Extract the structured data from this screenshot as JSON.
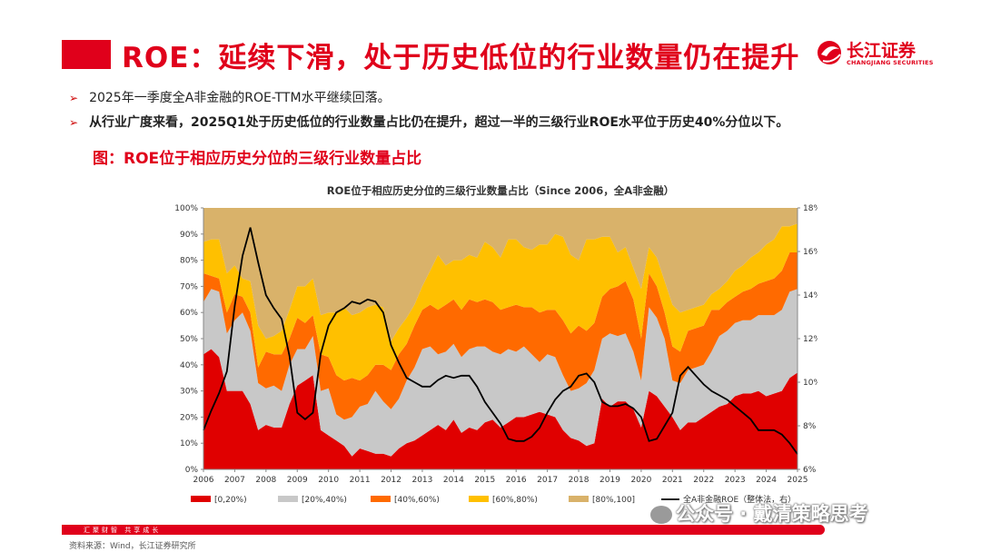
{
  "header": {
    "title": "ROE：延续下滑，处于历史低位的行业数量仍在提升",
    "logo_text": "长江证券",
    "logo_sub": "CHANGJIANG SECURITIES"
  },
  "bullets": [
    "2025年一季度全A非金融的ROE-TTM水平继续回落。",
    "从行业广度来看，2025Q1处于历史低位的行业数量占比仍在提升，超过一半的三级行业ROE水平位于历史40%分位以下。"
  ],
  "figure_title": "图：ROE位于相应历史分位的三级行业数量占比",
  "footer": {
    "slogan": "汇聚财智 共享成长",
    "source": "资料来源：Wind，长江证券研究所",
    "watermark": "公众号 · 戴清策略思考"
  },
  "chart_data": {
    "type": "area",
    "title": "ROE位于相应历史分位的三级行业数量占比（Since 2006，全A非金融）",
    "x": [
      2006.0,
      2006.25,
      2006.5,
      2006.75,
      2007.0,
      2007.25,
      2007.5,
      2007.75,
      2008.0,
      2008.25,
      2008.5,
      2008.75,
      2009.0,
      2009.25,
      2009.5,
      2009.75,
      2010.0,
      2010.25,
      2010.5,
      2010.75,
      2011.0,
      2011.25,
      2011.5,
      2011.75,
      2012.0,
      2012.25,
      2012.5,
      2012.75,
      2013.0,
      2013.25,
      2013.5,
      2013.75,
      2014.0,
      2014.25,
      2014.5,
      2014.75,
      2015.0,
      2015.25,
      2015.5,
      2015.75,
      2016.0,
      2016.25,
      2016.5,
      2016.75,
      2017.0,
      2017.25,
      2017.5,
      2017.75,
      2018.0,
      2018.25,
      2018.5,
      2018.75,
      2019.0,
      2019.25,
      2019.5,
      2019.75,
      2020.0,
      2020.25,
      2020.5,
      2020.75,
      2021.0,
      2021.25,
      2021.5,
      2021.75,
      2022.0,
      2022.25,
      2022.5,
      2022.75,
      2023.0,
      2023.25,
      2023.5,
      2023.75,
      2024.0,
      2024.25,
      2024.5,
      2024.75,
      2025.0
    ],
    "xlim": [
      2006,
      2025
    ],
    "x_ticks": [
      "2006",
      "2007",
      "2008",
      "2009",
      "2010",
      "2011",
      "2012",
      "2013",
      "2014",
      "2015",
      "2016",
      "2017",
      "2018",
      "2019",
      "2020",
      "2021",
      "2022",
      "2023",
      "2024",
      "2025"
    ],
    "y_left_ticks": [
      "0%",
      "10%",
      "20%",
      "30%",
      "40%",
      "50%",
      "60%",
      "70%",
      "80%",
      "90%",
      "100%"
    ],
    "y_right_ticks": [
      "6%",
      "8%",
      "10%",
      "12%",
      "14%",
      "16%",
      "18%"
    ],
    "ylim_left": [
      0,
      100
    ],
    "ylim_right": [
      6,
      18
    ],
    "stack_series": [
      {
        "name": "[0,20%)",
        "color": "#e00000",
        "values": [
          44,
          46,
          43,
          30,
          30,
          30,
          25,
          15,
          17,
          16,
          16,
          25,
          32,
          34,
          36,
          15,
          13,
          11,
          9,
          5,
          8,
          7,
          6,
          6,
          5,
          8,
          10,
          11,
          13,
          15,
          17,
          15,
          19,
          14,
          16,
          15,
          18,
          19,
          16,
          18,
          20,
          20,
          21,
          22,
          21,
          20,
          15,
          12,
          11,
          9,
          10,
          27,
          24,
          26,
          26,
          23,
          16,
          30,
          28,
          24,
          20,
          15,
          18,
          18,
          20,
          22,
          24,
          25,
          28,
          29,
          29,
          30,
          28,
          29,
          30,
          35,
          37
        ]
      },
      {
        "name": "[20%,40%)",
        "color": "#c8c8c8",
        "values": [
          20,
          23,
          25,
          22,
          27,
          30,
          28,
          18,
          14,
          16,
          14,
          15,
          14,
          12,
          15,
          15,
          18,
          10,
          10,
          15,
          16,
          18,
          24,
          20,
          18,
          19,
          24,
          28,
          33,
          32,
          27,
          30,
          29,
          29,
          30,
          32,
          29,
          26,
          28,
          28,
          25,
          27,
          23,
          19,
          23,
          23,
          21,
          18,
          20,
          24,
          28,
          23,
          28,
          25,
          26,
          22,
          18,
          32,
          30,
          26,
          14,
          18,
          20,
          21,
          20,
          23,
          27,
          28,
          28,
          28,
          28,
          29,
          31,
          30,
          31,
          33,
          32
        ]
      },
      {
        "name": "[40%,60%)",
        "color": "#ff6a00",
        "values": [
          11,
          5,
          5,
          8,
          10,
          6,
          7,
          6,
          14,
          12,
          14,
          10,
          12,
          10,
          8,
          14,
          12,
          15,
          15,
          15,
          10,
          11,
          10,
          14,
          15,
          17,
          14,
          16,
          15,
          16,
          17,
          18,
          17,
          18,
          19,
          17,
          18,
          19,
          17,
          16,
          18,
          15,
          18,
          19,
          17,
          18,
          21,
          22,
          24,
          20,
          18,
          16,
          17,
          19,
          20,
          20,
          16,
          13,
          12,
          10,
          13,
          12,
          15,
          15,
          15,
          16,
          10,
          11,
          10,
          11,
          12,
          12,
          13,
          14,
          15,
          15,
          14
        ]
      },
      {
        "name": "[60%,80%)",
        "color": "#ffc000",
        "values": [
          12,
          14,
          15,
          15,
          11,
          7,
          12,
          16,
          5,
          7,
          9,
          11,
          12,
          14,
          14,
          15,
          17,
          24,
          28,
          24,
          26,
          26,
          23,
          22,
          11,
          10,
          10,
          8,
          9,
          13,
          21,
          15,
          15,
          19,
          17,
          17,
          22,
          21,
          20,
          26,
          25,
          23,
          22,
          26,
          25,
          29,
          32,
          30,
          25,
          35,
          32,
          23,
          20,
          13,
          13,
          12,
          19,
          10,
          11,
          12,
          16,
          15,
          8,
          8,
          8,
          6,
          8,
          8,
          10,
          10,
          12,
          12,
          14,
          15,
          17,
          10,
          11
        ]
      },
      {
        "name": "[80%,100]",
        "color": "#d9b26a",
        "values": [
          13,
          12,
          12,
          25,
          22,
          27,
          28,
          45,
          50,
          49,
          47,
          39,
          30,
          30,
          27,
          41,
          40,
          40,
          38,
          41,
          40,
          38,
          37,
          38,
          51,
          46,
          42,
          37,
          30,
          24,
          18,
          22,
          20,
          20,
          18,
          19,
          13,
          15,
          19,
          12,
          12,
          15,
          16,
          14,
          14,
          10,
          11,
          18,
          20,
          12,
          12,
          11,
          11,
          17,
          15,
          23,
          31,
          15,
          19,
          28,
          37,
          40,
          39,
          38,
          37,
          33,
          31,
          28,
          24,
          22,
          19,
          17,
          14,
          12,
          7,
          7,
          6
        ]
      }
    ],
    "line_series": {
      "name": "全A非金融ROE（整体法，右）",
      "color": "#000000",
      "values": [
        7.8,
        8.7,
        9.5,
        10.5,
        13.5,
        15.8,
        17.1,
        15.5,
        14.0,
        13.4,
        12.9,
        11.2,
        8.6,
        8.3,
        8.6,
        11.3,
        12.6,
        13.2,
        13.4,
        13.7,
        13.6,
        13.8,
        13.7,
        13.2,
        11.7,
        10.9,
        10.2,
        10.0,
        9.8,
        9.8,
        10.1,
        10.3,
        10.2,
        10.3,
        10.3,
        9.8,
        9.1,
        8.6,
        8.1,
        7.4,
        7.3,
        7.3,
        7.5,
        7.9,
        8.6,
        9.2,
        9.6,
        9.8,
        10.3,
        10.4,
        10.0,
        9.1,
        8.9,
        8.9,
        9.0,
        8.8,
        8.4,
        7.3,
        7.4,
        8.0,
        8.6,
        10.3,
        10.7,
        10.3,
        9.9,
        9.6,
        9.4,
        9.2,
        8.9,
        8.6,
        8.3,
        7.8,
        7.8,
        7.8,
        7.6,
        7.2,
        6.7
      ]
    }
  }
}
